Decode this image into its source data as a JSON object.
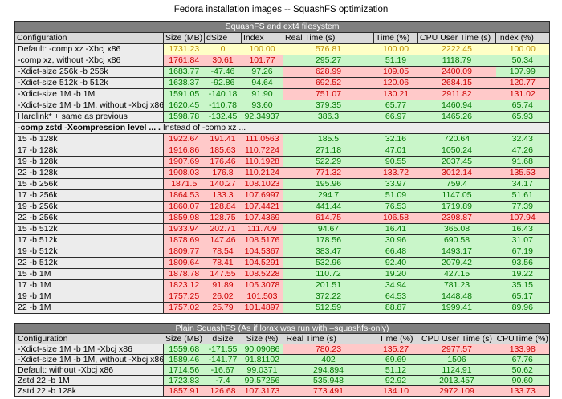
{
  "page": {
    "title": "Fedora installation images -- SquashFS optimization"
  },
  "colors": {
    "good_bg": "#c9f6c9",
    "good_text": "#017701",
    "bad_bg": "#ffc9c9",
    "bad_text": "#cc0000",
    "neutral_bg": "#ffffc6",
    "neutral_text": "#bf9000",
    "band_title_bg": "#7f7f7f",
    "band_title_text": "#ffffff",
    "header_bg": "#d9d9d9",
    "config_bg": "#ececec"
  },
  "table1": {
    "title": "SquashFS and ext4 filesystem",
    "columns": [
      "Configuration",
      "Size (MB)",
      "dSize",
      "Index",
      "Real Time (s)",
      "Time (%)",
      "CPU User Time (s)",
      "Index (%)"
    ],
    "rows": [
      {
        "config": "Default: -comp xz -Xbcj x86",
        "values": [
          "1731.23",
          "0",
          "100.00",
          "576.81",
          "100.00",
          "2222.45",
          "100.00"
        ],
        "colors": "yyyyyyy"
      },
      {
        "config": "-comp xz, without -Xbcj x86",
        "values": [
          "1761.84",
          "30.61",
          "101.77",
          "295.27",
          "51.19",
          "1118.79",
          "50.34"
        ],
        "colors": "rrrgggg"
      },
      {
        "config": "-Xdict-size 256k -b 256k",
        "values": [
          "1683.77",
          "-47.46",
          "97.26",
          "628.99",
          "109.05",
          "2400.09",
          "107.99"
        ],
        "colors": "gggrrrg"
      },
      {
        "config": "-Xdict-size 512k -b 512k",
        "values": [
          "1638.37",
          "-92.86",
          "94.64",
          "692.52",
          "120.06",
          "2684.15",
          "120.77"
        ],
        "colors": "gggrrrr"
      },
      {
        "config": "-Xdict-size 1M -b 1M",
        "values": [
          "1591.05",
          "-140.18",
          "91.90",
          "751.07",
          "130.21",
          "2911.82",
          "131.02"
        ],
        "colors": "gggrrrr"
      },
      {
        "config": "-Xdict-size 1M -b 1M, without -Xbcj x86",
        "values": [
          "1620.45",
          "-110.78",
          "93.60",
          "379.35",
          "65.77",
          "1460.94",
          "65.74"
        ],
        "colors": "ggggggg"
      },
      {
        "config": "Hardlink* + same as previous",
        "values": [
          "1598.78",
          "-132.45",
          "92.34937",
          "386.3",
          "66.97",
          "1465.26",
          "65.93"
        ],
        "colors": "ggggggg"
      },
      {
        "note": {
          "bold": "-comp zstd -Xcompression level ... .",
          "rest": " Instead of -comp xz ..."
        }
      },
      {
        "config": "15 -b 128k",
        "values": [
          "1922.64",
          "191.41",
          "111.0563",
          "185.5",
          "32.16",
          "720.64",
          "32.43"
        ],
        "colors": "rrrgggg"
      },
      {
        "config": "17 -b 128k",
        "values": [
          "1916.86",
          "185.63",
          "110.7224",
          "271.18",
          "47.01",
          "1050.24",
          "47.26"
        ],
        "colors": "rrrgggg"
      },
      {
        "config": "19 -b 128k",
        "values": [
          "1907.69",
          "176.46",
          "110.1928",
          "522.29",
          "90.55",
          "2037.45",
          "91.68"
        ],
        "colors": "rrrgggg"
      },
      {
        "config": "22 -b 128k",
        "values": [
          "1908.03",
          "176.8",
          "110.2124",
          "771.32",
          "133.72",
          "3012.14",
          "135.53"
        ],
        "colors": "rrrrrrr"
      },
      {
        "config": "15 -b 256k",
        "values": [
          "1871.5",
          "140.27",
          "108.1023",
          "195.96",
          "33.97",
          "759.4",
          "34.17"
        ],
        "colors": "rrrgggg"
      },
      {
        "config": "17 -b 256k",
        "values": [
          "1864.53",
          "133.3",
          "107.6997",
          "294.7",
          "51.09",
          "1147.05",
          "51.61"
        ],
        "colors": "rrrgggg"
      },
      {
        "config": "19 -b 256k",
        "values": [
          "1860.07",
          "128.84",
          "107.4421",
          "441.44",
          "76.53",
          "1719.89",
          "77.39"
        ],
        "colors": "rrrgggg"
      },
      {
        "config": "22 -b 256k",
        "values": [
          "1859.98",
          "128.75",
          "107.4369",
          "614.75",
          "106.58",
          "2398.87",
          "107.94"
        ],
        "colors": "rrrrrrr"
      },
      {
        "config": "15 -b 512k",
        "values": [
          "1933.94",
          "202.71",
          "111.709",
          "94.67",
          "16.41",
          "365.08",
          "16.43"
        ],
        "colors": "rrrgggg"
      },
      {
        "config": "17 -b 512k",
        "values": [
          "1878.69",
          "147.46",
          "108.5176",
          "178.56",
          "30.96",
          "690.58",
          "31.07"
        ],
        "colors": "rrrgggg"
      },
      {
        "config": "19 -b 512k",
        "values": [
          "1809.77",
          "78.54",
          "104.5367",
          "383.47",
          "66.48",
          "1493.17",
          "67.19"
        ],
        "colors": "rrrgggg"
      },
      {
        "config": "22 -b 512k",
        "values": [
          "1809.64",
          "78.41",
          "104.5291",
          "532.96",
          "92.40",
          "2079.42",
          "93.56"
        ],
        "colors": "rrrgggg"
      },
      {
        "config": "15 -b 1M",
        "values": [
          "1878.78",
          "147.55",
          "108.5228",
          "110.72",
          "19.20",
          "427.15",
          "19.22"
        ],
        "colors": "rrrgggg"
      },
      {
        "config": "17 -b 1M",
        "values": [
          "1823.12",
          "91.89",
          "105.3078",
          "201.51",
          "34.94",
          "781.23",
          "35.15"
        ],
        "colors": "rrrgggg"
      },
      {
        "config": "19 -b 1M",
        "values": [
          "1757.25",
          "26.02",
          "101.503",
          "372.22",
          "64.53",
          "1448.48",
          "65.17"
        ],
        "colors": "rrrgggg"
      },
      {
        "config": "22 -b 1M",
        "values": [
          "1757.02",
          "25.79",
          "101.4897",
          "512.59",
          "88.87",
          "1999.41",
          "89.96"
        ],
        "colors": "rrrgggg"
      }
    ]
  },
  "table2": {
    "title": "Plain SquashFS (As if lorax was run with –squashfs-only)",
    "columns": [
      "Configuration",
      "Size (MB)",
      "dSize",
      "Size (%)",
      "Real Time (s)",
      "Time (%)",
      "CPU User Time (s)",
      "CPUTime (%)"
    ],
    "rows": [
      {
        "config": "-Xdict-size 1M -b 1M -Xbcj x86",
        "values": [
          "1559.68",
          "-171.55",
          "90.09086",
          "780.23",
          "135.27",
          "2977.57",
          "133.98"
        ],
        "colors": "gggrrrr"
      },
      {
        "config": "-Xdict-size 1M -b 1M, without -Xbcj x86",
        "values": [
          "1589.46",
          "-141.77",
          "91.81102",
          "402",
          "69.69",
          "1506",
          "67.76"
        ],
        "colors": "ggggggg"
      },
      {
        "config": "Default: without -Xbcj x86",
        "values": [
          "1714.56",
          "-16.67",
          "99.0371",
          "294.894",
          "51.12",
          "1124.91",
          "50.62"
        ],
        "colors": "ggggggg"
      },
      {
        "config": "Zstd 22 -b 1M",
        "values": [
          "1723.83",
          "-7.4",
          "99.57256",
          "535.948",
          "92.92",
          "2013.457",
          "90.60"
        ],
        "colors": "ggggggg"
      },
      {
        "config": "Zstd 22 -b 128k",
        "values": [
          "1857.91",
          "126.68",
          "107.3173",
          "773.491",
          "134.10",
          "2972.109",
          "133.73"
        ],
        "colors": "rrrrrrr"
      }
    ]
  }
}
